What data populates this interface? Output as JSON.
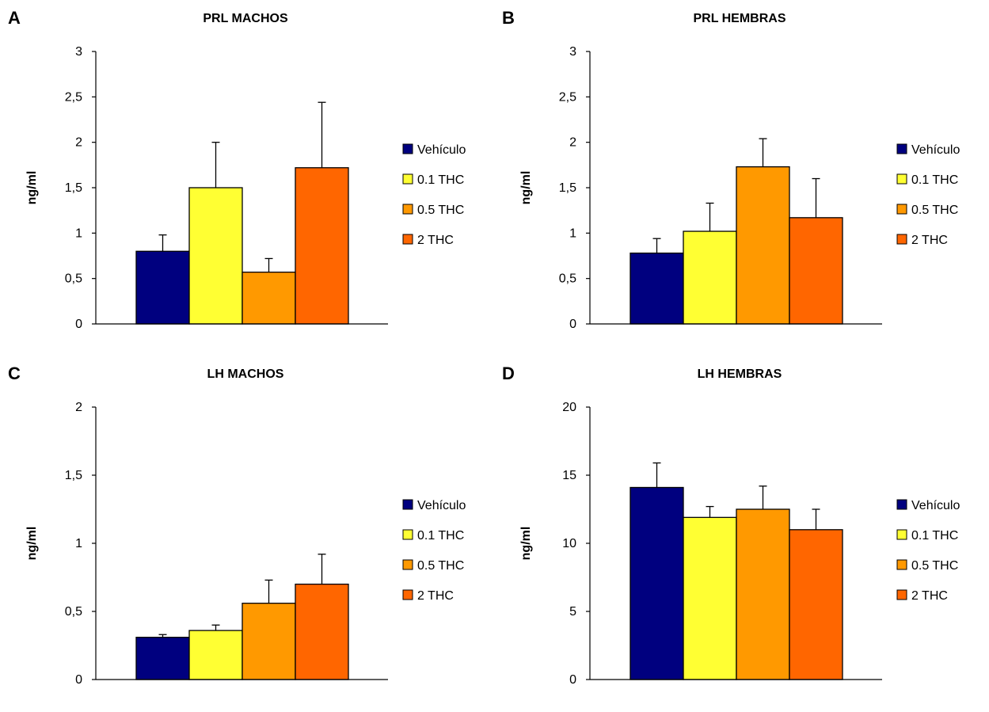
{
  "legend": [
    {
      "label": "Vehículo",
      "color": "#00007f"
    },
    {
      "label": "0.1 THC",
      "color": "#ffff33"
    },
    {
      "label": "0.5 THC",
      "color": "#ff9900"
    },
    {
      "label": "2 THC",
      "color": "#ff6600"
    }
  ],
  "chart_data": [
    {
      "type": "bar",
      "panel_label": "A",
      "title": "PRL MACHOS",
      "ylabel": "ng/ml",
      "ylim": [
        0,
        3
      ],
      "yticks": [
        "0",
        "0,5",
        "1",
        "1,5",
        "2",
        "2,5",
        "3"
      ],
      "ytick_values": [
        0,
        0.5,
        1,
        1.5,
        2,
        2.5,
        3
      ],
      "categories": [
        "Vehículo",
        "0.1 THC",
        "0.5 THC",
        "2 THC"
      ],
      "values": [
        0.8,
        1.5,
        0.57,
        1.72
      ],
      "errors": [
        0.18,
        0.5,
        0.15,
        0.72
      ],
      "legend_position": "right"
    },
    {
      "type": "bar",
      "panel_label": "B",
      "title": "PRL HEMBRAS",
      "ylabel": "ng/ml",
      "ylim": [
        0,
        3
      ],
      "yticks": [
        "0",
        "0,5",
        "1",
        "1,5",
        "2",
        "2,5",
        "3"
      ],
      "ytick_values": [
        0,
        0.5,
        1,
        1.5,
        2,
        2.5,
        3
      ],
      "categories": [
        "Vehículo",
        "0.1 THC",
        "0.5 THC",
        "2 THC"
      ],
      "values": [
        0.78,
        1.02,
        1.73,
        1.17
      ],
      "errors": [
        0.16,
        0.31,
        0.31,
        0.43
      ],
      "legend_position": "right"
    },
    {
      "type": "bar",
      "panel_label": "C",
      "title": "LH MACHOS",
      "ylabel": "ng/ml",
      "ylim": [
        0,
        2
      ],
      "yticks": [
        "0",
        "0,5",
        "1",
        "1,5",
        "2"
      ],
      "ytick_values": [
        0,
        0.5,
        1,
        1.5,
        2
      ],
      "categories": [
        "Vehículo",
        "0.1 THC",
        "0.5 THC",
        "2 THC"
      ],
      "values": [
        0.31,
        0.36,
        0.56,
        0.7
      ],
      "errors": [
        0.02,
        0.04,
        0.17,
        0.22
      ],
      "legend_position": "right"
    },
    {
      "type": "bar",
      "panel_label": "D",
      "title": "LH HEMBRAS",
      "ylabel": "ng/ml",
      "ylim": [
        0,
        20
      ],
      "yticks": [
        "0",
        "5",
        "10",
        "15",
        "20"
      ],
      "ytick_values": [
        0,
        5,
        10,
        15,
        20
      ],
      "categories": [
        "Vehículo",
        "0.1 THC",
        "0.5 THC",
        "2 THC"
      ],
      "values": [
        14.1,
        11.9,
        12.5,
        11.0
      ],
      "errors": [
        1.8,
        0.8,
        1.7,
        1.5
      ],
      "legend_position": "right"
    }
  ]
}
